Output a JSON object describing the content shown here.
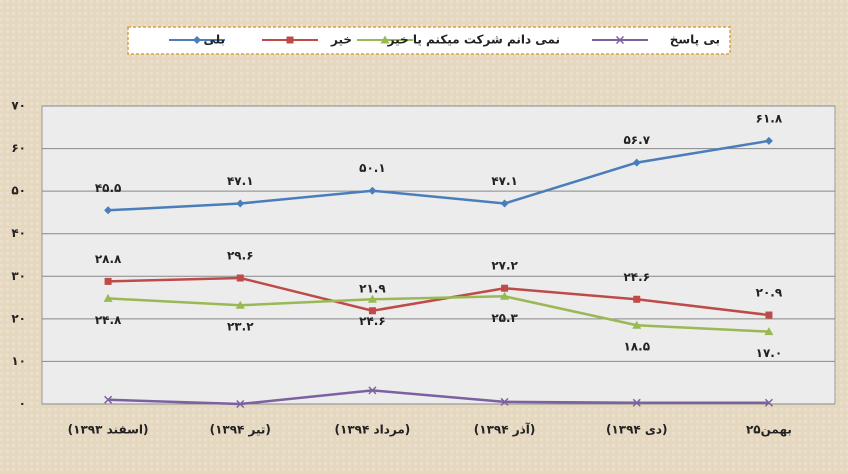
{
  "chart_data": {
    "type": "line",
    "categories": [
      "(اسفند ۱۳۹۳)",
      "(تیر ۱۳۹۴)",
      "(مرداد ۱۳۹۴)",
      "(آذر ۱۳۹۴)",
      "(دی ۱۳۹۴)",
      "بهمن۲۵"
    ],
    "series": [
      {
        "name": "بلی",
        "color": "#4a7ebb",
        "marker": "diamond",
        "label_side": "above",
        "values": [
          45.5,
          47.1,
          50.1,
          47.1,
          56.7,
          61.8
        ],
        "value_labels": [
          "۴۵.۵",
          "۴۷.۱",
          "۵۰.۱",
          "۴۷.۱",
          "۵۶.۷",
          "۶۱.۸"
        ]
      },
      {
        "name": "خیر",
        "color": "#be4b48",
        "marker": "square",
        "label_side": "above",
        "values": [
          28.8,
          29.6,
          21.9,
          27.2,
          24.6,
          20.9
        ],
        "value_labels": [
          "۲۸.۸",
          "۲۹.۶",
          "۲۱.۹",
          "۲۷.۲",
          "۲۴.۶",
          "۲۰.۹"
        ]
      },
      {
        "name": "نمی دانم شرکت میکنم یا خیر",
        "color": "#98b954",
        "marker": "triangle",
        "label_side": "below",
        "values": [
          24.8,
          23.2,
          24.6,
          25.3,
          18.5,
          17.0
        ],
        "value_labels": [
          "۲۴.۸",
          "۲۳.۲",
          "۲۴.۶",
          "۲۵.۳",
          "۱۸.۵",
          "۱۷.۰"
        ]
      },
      {
        "name": "بی پاسخ",
        "color": "#7d60a0",
        "marker": "x",
        "values": [
          1,
          0,
          3.2,
          0.5,
          0.3,
          0.3
        ]
      }
    ],
    "ylim": [
      0,
      70
    ],
    "yticks": [
      {
        "value": 0,
        "label": "۰"
      },
      {
        "value": 10,
        "label": "۱۰"
      },
      {
        "value": 20,
        "label": "۲۰"
      },
      {
        "value": 30,
        "label": "۳۰"
      },
      {
        "value": 40,
        "label": "۴۰"
      },
      {
        "value": 50,
        "label": "۵۰"
      },
      {
        "value": 60,
        "label": "۶۰"
      },
      {
        "value": 70,
        "label": "۷۰"
      }
    ],
    "grid": true
  }
}
